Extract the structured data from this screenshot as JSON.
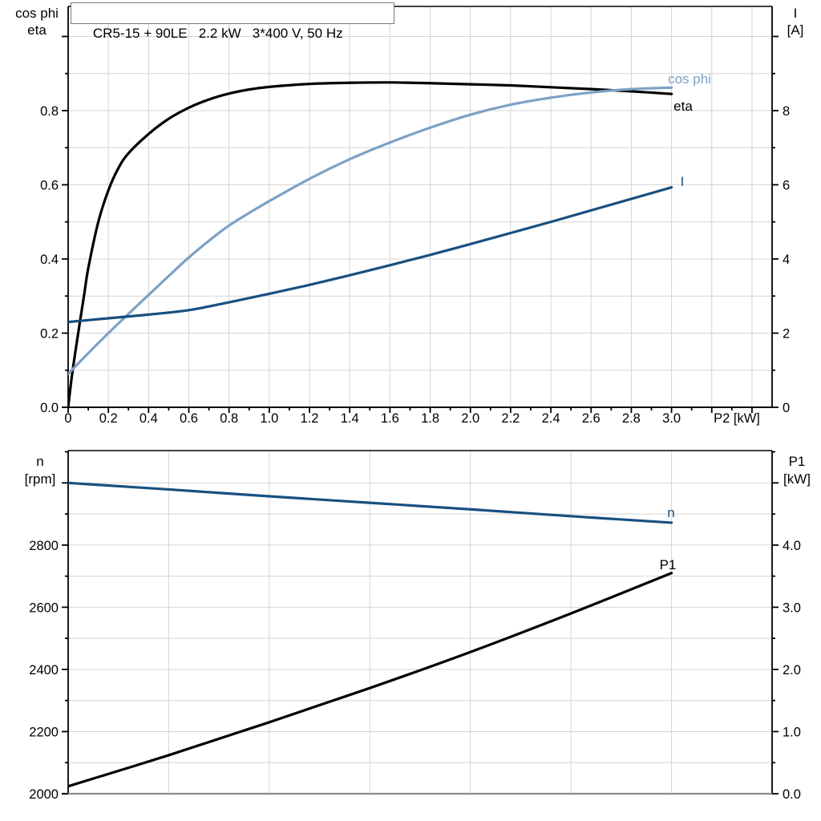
{
  "title_box": {
    "text": "CR5-15 + 90LE   2.2 kW   3*400 V, 50 Hz"
  },
  "colors": {
    "black": "#000000",
    "light_blue": "#7da1c5",
    "dark_blue": "#175081",
    "grid": "#d4d4d4",
    "axis_gray": "#8c8c8c",
    "background": "#ffffff"
  },
  "chart_data": [
    {
      "name": "motor-electrical-chart",
      "type": "line",
      "title": "CR5-15 + 90LE   2.2 kW   3*400 V, 50 Hz",
      "xlabel": "P2 [kW]",
      "xlim": [
        0,
        3.5
      ],
      "x_grid_step": 0.2,
      "x_major_step": 0.2,
      "x_minor_step": 0.1,
      "x_tick_values": [
        0,
        0.2,
        0.4,
        0.6,
        0.8,
        1.0,
        1.2,
        1.4,
        1.6,
        1.8,
        2.0,
        2.2,
        2.4,
        2.6,
        2.8,
        3.0
      ],
      "x_tick_labels": [
        "0",
        "0.2",
        "0.4",
        "0.6",
        "0.8",
        "1.0",
        "1.2",
        "1.4",
        "1.6",
        "1.8",
        "2.0",
        "2.2",
        "2.4",
        "2.6",
        "2.8",
        "3.0"
      ],
      "left_axis": {
        "title_lines": [
          "cos phi",
          "eta"
        ],
        "lim": [
          0,
          1.081
        ],
        "grid_step": 0.1,
        "major_step": 0.2,
        "minor_step": 0.1,
        "tick_values": [
          0,
          0.2,
          0.4,
          0.6,
          0.8
        ],
        "tick_labels": [
          "0.0",
          "0.2",
          "0.4",
          "0.6",
          "0.8"
        ]
      },
      "right_axis": {
        "title_lines": [
          "I",
          "[A]"
        ],
        "lim": [
          0,
          10.81
        ],
        "major_step": 2,
        "minor_step": 1,
        "tick_values": [
          0,
          2,
          4,
          6,
          8
        ],
        "tick_labels": [
          "0",
          "2",
          "4",
          "6",
          "8"
        ]
      },
      "series": [
        {
          "name": "eta",
          "label": "eta",
          "axis": "left",
          "color_key": "black",
          "points": [
            [
              0,
              0
            ],
            [
              0.02,
              0.09
            ],
            [
              0.05,
              0.2
            ],
            [
              0.08,
              0.305
            ],
            [
              0.1,
              0.375
            ],
            [
              0.15,
              0.5
            ],
            [
              0.2,
              0.585
            ],
            [
              0.25,
              0.645
            ],
            [
              0.3,
              0.685
            ],
            [
              0.4,
              0.737
            ],
            [
              0.5,
              0.778
            ],
            [
              0.6,
              0.808
            ],
            [
              0.7,
              0.83
            ],
            [
              0.8,
              0.846
            ],
            [
              0.9,
              0.857
            ],
            [
              1.0,
              0.864
            ],
            [
              1.2,
              0.872
            ],
            [
              1.4,
              0.875
            ],
            [
              1.6,
              0.876
            ],
            [
              1.8,
              0.874
            ],
            [
              2.0,
              0.871
            ],
            [
              2.2,
              0.868
            ],
            [
              2.4,
              0.863
            ],
            [
              2.6,
              0.858
            ],
            [
              2.8,
              0.852
            ],
            [
              3.0,
              0.845
            ]
          ]
        },
        {
          "name": "cos-phi",
          "label": "cos phi",
          "axis": "left",
          "color_key": "light_blue",
          "points": [
            [
              0,
              0.09
            ],
            [
              0.1,
              0.146
            ],
            [
              0.2,
              0.2
            ],
            [
              0.3,
              0.252
            ],
            [
              0.4,
              0.303
            ],
            [
              0.5,
              0.354
            ],
            [
              0.6,
              0.404
            ],
            [
              0.7,
              0.449
            ],
            [
              0.8,
              0.49
            ],
            [
              0.9,
              0.524
            ],
            [
              1.0,
              0.556
            ],
            [
              1.2,
              0.616
            ],
            [
              1.4,
              0.669
            ],
            [
              1.6,
              0.714
            ],
            [
              1.8,
              0.754
            ],
            [
              2.0,
              0.789
            ],
            [
              2.2,
              0.816
            ],
            [
              2.4,
              0.835
            ],
            [
              2.6,
              0.849
            ],
            [
              2.8,
              0.858
            ],
            [
              3.0,
              0.862
            ]
          ]
        },
        {
          "name": "current-I",
          "label": "I",
          "axis": "right",
          "color_key": "dark_blue",
          "points": [
            [
              0,
              2.3
            ],
            [
              0.2,
              2.4
            ],
            [
              0.4,
              2.5
            ],
            [
              0.6,
              2.62
            ],
            [
              0.8,
              2.83
            ],
            [
              1.0,
              3.06
            ],
            [
              1.2,
              3.3
            ],
            [
              1.4,
              3.56
            ],
            [
              1.6,
              3.83
            ],
            [
              1.8,
              4.11
            ],
            [
              2.0,
              4.4
            ],
            [
              2.2,
              4.7
            ],
            [
              2.4,
              5.0
            ],
            [
              2.6,
              5.31
            ],
            [
              2.8,
              5.62
            ],
            [
              3.0,
              5.93
            ]
          ]
        }
      ]
    },
    {
      "name": "speed-power-chart",
      "type": "line",
      "title": "",
      "xlabel": "",
      "xlim": [
        0,
        3.5
      ],
      "x_grid_step": 0.5,
      "x_major_step": 0,
      "x_minor_step": 0,
      "x_tick_values": [],
      "x_tick_labels": [],
      "left_axis": {
        "title_lines": [
          "n",
          "[rpm]"
        ],
        "lim": [
          2000,
          3104
        ],
        "grid_step": 100,
        "major_step": 200,
        "minor_step": 100,
        "tick_values": [
          2000,
          2200,
          2400,
          2600,
          2800
        ],
        "tick_labels": [
          "2000",
          "2200",
          "2400",
          "2600",
          "2800"
        ]
      },
      "right_axis": {
        "title_lines": [
          "P1",
          "[kW]"
        ],
        "lim": [
          0,
          5.52
        ],
        "major_step": 1,
        "minor_step": 0.5,
        "tick_values": [
          0,
          1,
          2,
          3,
          4
        ],
        "tick_labels": [
          "0.0",
          "1.0",
          "2.0",
          "3.0",
          "4.0"
        ]
      },
      "series": [
        {
          "name": "speed-n",
          "label": "n",
          "axis": "left",
          "color_key": "dark_blue",
          "points": [
            [
              0,
              3000
            ],
            [
              0.5,
              2979
            ],
            [
              1.0,
              2957
            ],
            [
              1.5,
              2936
            ],
            [
              2.0,
              2915
            ],
            [
              2.5,
              2893
            ],
            [
              3.0,
              2872
            ]
          ]
        },
        {
          "name": "input-power-P1",
          "label": "P1",
          "axis": "right",
          "color_key": "black",
          "points": [
            [
              0,
              0.12
            ],
            [
              0.5,
              0.62
            ],
            [
              1.0,
              1.15
            ],
            [
              1.5,
              1.7
            ],
            [
              2.0,
              2.28
            ],
            [
              2.5,
              2.9
            ],
            [
              3.0,
              3.55
            ]
          ]
        }
      ]
    }
  ]
}
